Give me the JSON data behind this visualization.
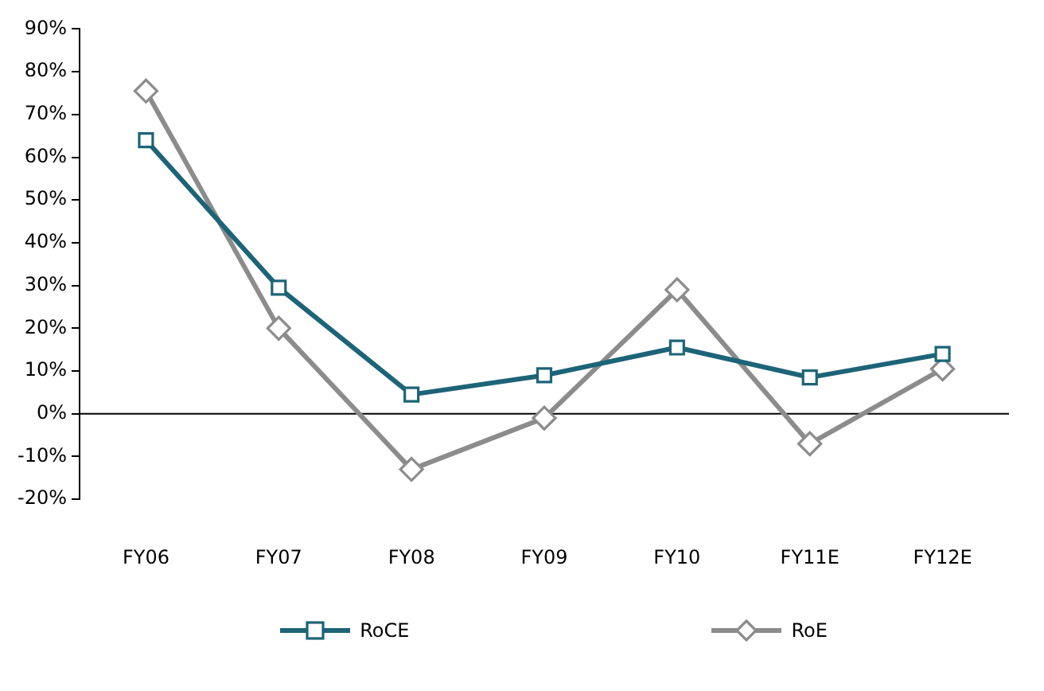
{
  "chart_data": {
    "type": "line",
    "categories": [
      "FY06",
      "FY07",
      "FY08",
      "FY09",
      "FY10",
      "FY11E",
      "FY12E"
    ],
    "series": [
      {
        "name": "RoCE",
        "color": "#1d6478",
        "marker": "square",
        "values": [
          64,
          29.5,
          4.5,
          9,
          15.5,
          8.5,
          14
        ]
      },
      {
        "name": "RoE",
        "color": "#8c8c8c",
        "marker": "diamond",
        "values": [
          75.5,
          20,
          -13,
          -1,
          29,
          -7,
          10.5
        ]
      }
    ],
    "ylim": [
      -20,
      90
    ],
    "yticks": [
      {
        "value": -20,
        "label": "-20%"
      },
      {
        "value": -10,
        "label": "-10%"
      },
      {
        "value": 0,
        "label": "0%"
      },
      {
        "value": 10,
        "label": "10%"
      },
      {
        "value": 20,
        "label": "20%"
      },
      {
        "value": 30,
        "label": "30%"
      },
      {
        "value": 40,
        "label": "40%"
      },
      {
        "value": 50,
        "label": "50%"
      },
      {
        "value": 60,
        "label": "60%"
      },
      {
        "value": 70,
        "label": "70%"
      },
      {
        "value": 80,
        "label": "80%"
      },
      {
        "value": 90,
        "label": "90%"
      }
    ],
    "ref_lines": [
      {
        "axis": "y",
        "value": 0,
        "color": "#000000",
        "line_style": "solid"
      }
    ],
    "grid": false,
    "legend": "bottom",
    "line_style": "solid"
  }
}
